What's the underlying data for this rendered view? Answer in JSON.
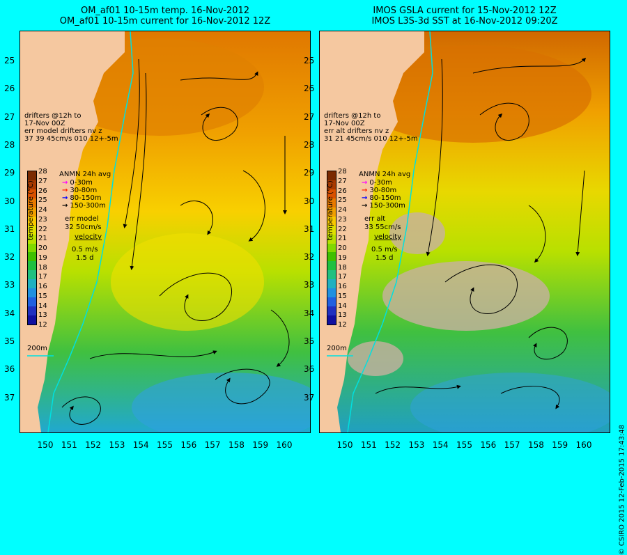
{
  "left": {
    "title1": "OM_af01 10-15m temp. 16-Nov-2012",
    "title2": "OM_af01 10-15m current for 16-Nov-2012 12Z",
    "drifters": [
      "drifters @12h to",
      "17-Nov 00Z",
      "err model drifters nv z",
      "37   39   45cm/s 010 12+-5m"
    ],
    "legend_title": "ANMN 24h avg",
    "err_label": "err model",
    "err_value": "32 50cm/s",
    "velocity": "velocity",
    "scale1": "0.5 m/s",
    "scale2": "1.5 d",
    "isobath": "200m"
  },
  "right": {
    "title1": "IMOS GSLA current for 15-Nov-2012 12Z",
    "title2": "IMOS L3S-3d SST at 16-Nov-2012 09:20Z",
    "drifters": [
      "drifters @12h to",
      "17-Nov 00Z",
      "err alt drifters nv z",
      "31 21 45cm/s 010 12+-5m"
    ],
    "legend_title": "ANMN 24h avg",
    "err_label": "err alt",
    "err_value": "33 55cm/s",
    "velocity": "velocity",
    "scale1": "0.5 m/s",
    "scale2": "1.5 d",
    "isobath": "200m"
  },
  "depth_legend": [
    {
      "label": "0-30m",
      "color": "#ff00ff"
    },
    {
      "label": "30-80m",
      "color": "#ff2200"
    },
    {
      "label": "80-150m",
      "color": "#0000ff"
    },
    {
      "label": "150-300m",
      "color": "#000000"
    }
  ],
  "colorbar": {
    "axis_label": "temperature (°C)",
    "ticks": [
      "28",
      "27",
      "26",
      "25",
      "24",
      "23",
      "22",
      "21",
      "20",
      "19",
      "18",
      "17",
      "16",
      "15",
      "14",
      "13",
      "12"
    ],
    "colors": [
      "#7a2a00",
      "#a83a00",
      "#d85000",
      "#e87a00",
      "#f0a000",
      "#f8c800",
      "#e0e000",
      "#b8e000",
      "#80d800",
      "#40c000",
      "#20c040",
      "#20c080",
      "#20b0c0",
      "#2090e0",
      "#2060e0",
      "#2030c0",
      "#1010a0"
    ]
  },
  "lat_ticks": [
    "25",
    "26",
    "27",
    "28",
    "29",
    "30",
    "31",
    "32",
    "33",
    "34",
    "35",
    "36",
    "37"
  ],
  "lon_ticks": [
    "150",
    "151",
    "152",
    "153",
    "154",
    "155",
    "156",
    "157",
    "158",
    "159",
    "160"
  ],
  "colors": {
    "background": "#00ffff",
    "land": "#f5c8a0",
    "missing": "#c8b0a0"
  },
  "copyright": "© CSIRO 2015   12-Feb-2015 17:43:48"
}
